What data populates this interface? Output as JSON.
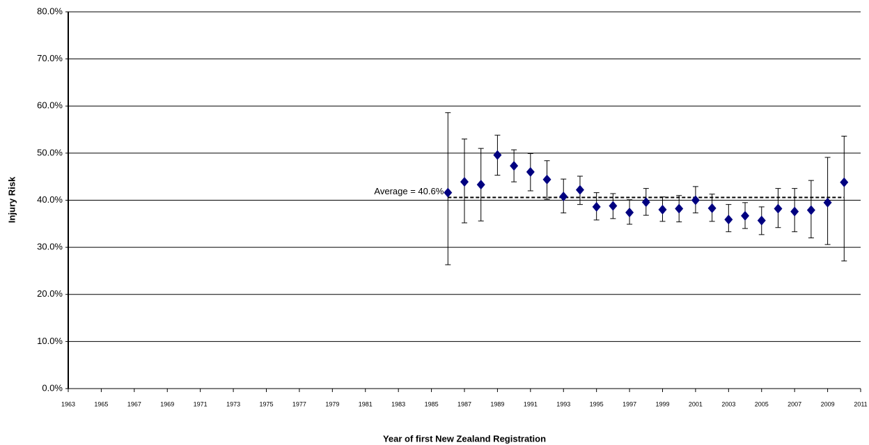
{
  "chart_data": {
    "type": "scatter",
    "x_label": "Year of first New Zealand Registration",
    "y_label": "Injury Risk",
    "x": [
      1986,
      1987,
      1988,
      1989,
      1990,
      1991,
      1992,
      1993,
      1994,
      1995,
      1996,
      1997,
      1998,
      1999,
      2000,
      2001,
      2002,
      2003,
      2004,
      2005,
      2006,
      2007,
      2008,
      2009,
      2010
    ],
    "values": [
      41.6,
      43.9,
      43.3,
      49.6,
      47.3,
      46.0,
      44.4,
      40.8,
      42.2,
      38.6,
      38.8,
      37.4,
      39.6,
      38.0,
      38.2,
      40.0,
      38.3,
      35.9,
      36.7,
      35.7,
      38.2,
      37.6,
      37.9,
      39.5,
      43.8
    ],
    "lower": [
      26.3,
      35.2,
      35.6,
      45.3,
      43.9,
      42.0,
      40.2,
      37.3,
      39.1,
      35.8,
      36.1,
      34.9,
      36.8,
      35.5,
      35.4,
      37.3,
      35.5,
      33.3,
      34.0,
      32.7,
      34.2,
      33.3,
      32.0,
      30.6,
      27.1
    ],
    "upper": [
      58.6,
      53.0,
      51.0,
      53.8,
      50.7,
      49.9,
      48.4,
      44.5,
      45.1,
      41.6,
      41.4,
      40.1,
      42.5,
      40.7,
      41.0,
      42.9,
      41.3,
      39.1,
      39.5,
      38.6,
      42.5,
      42.5,
      44.2,
      49.1,
      53.6
    ],
    "color": "#000080",
    "average": {
      "value": 40.6,
      "label": "Average = 40.6%"
    },
    "xlim": [
      1963,
      2011
    ],
    "xticks": [
      1963,
      1965,
      1967,
      1969,
      1971,
      1973,
      1975,
      1977,
      1979,
      1981,
      1983,
      1985,
      1987,
      1989,
      1991,
      1993,
      1995,
      1997,
      1999,
      2001,
      2003,
      2005,
      2007,
      2009,
      2011
    ],
    "ylim": [
      0,
      80
    ],
    "yticks": [
      {
        "value": 0,
        "label": "0.0%"
      },
      {
        "value": 10,
        "label": "10.0%"
      },
      {
        "value": 20,
        "label": "20.0%"
      },
      {
        "value": 30,
        "label": "30.0%"
      },
      {
        "value": 40,
        "label": "40.0%"
      },
      {
        "value": 50,
        "label": "50.0%"
      },
      {
        "value": 60,
        "label": "60.0%"
      },
      {
        "value": 70,
        "label": "70.0%"
      },
      {
        "value": 80,
        "label": "80.0%"
      }
    ],
    "grid": true
  }
}
